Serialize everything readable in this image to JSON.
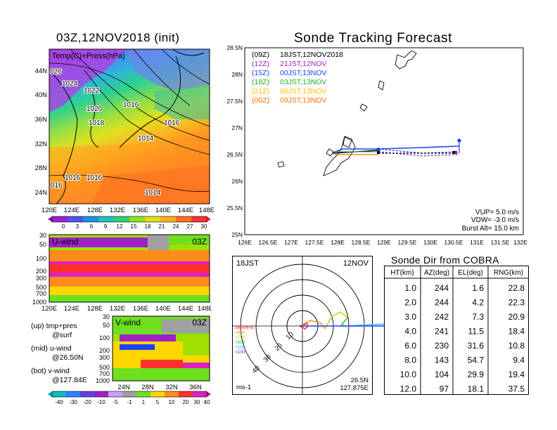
{
  "map_panel": {
    "title": "03Z,12NOV2018 (init)",
    "field_label": "Temp(C)+Press(hPa)",
    "lat_labels": [
      "44N",
      "40N",
      "36N",
      "32N",
      "28N",
      "24N"
    ],
    "lon_labels": [
      "120E",
      "124E",
      "128E",
      "132E",
      "136E",
      "140E",
      "144E",
      "148E"
    ],
    "isobar_labels": [
      "026",
      "1024",
      "1022",
      "1020",
      "1018",
      "1016",
      "1016",
      "1014",
      "016",
      "1016",
      "1016",
      "1014"
    ],
    "colorbar_labels": [
      "0",
      "3",
      "6",
      "9",
      "12",
      "15",
      "18",
      "21",
      "24",
      "27",
      "30"
    ]
  },
  "uwind_panel": {
    "title": "U-wind",
    "time": "03Z",
    "pressure_labels": [
      "30",
      "50",
      "100",
      "200",
      "300",
      "500",
      "700",
      "1000"
    ],
    "lon_labels": [
      "120E",
      "124E",
      "128E",
      "132E",
      "136E",
      "140E",
      "144E",
      "148E"
    ]
  },
  "vwind_panel": {
    "title": "V-wind",
    "time": "03Z",
    "pressure_labels": [
      "30",
      "50",
      "100",
      "200",
      "300",
      "500",
      "700",
      "1000"
    ],
    "lat_labels": [
      "24N",
      "28N",
      "32N",
      "36N"
    ]
  },
  "legend_notes": {
    "up_line1": "(up) tmp+pres",
    "up_line2": "@surf",
    "mid_line1": "(mid) u-wind",
    "mid_line2": "@26.50N",
    "bot_line1": "(bot) v-wind",
    "bot_line2": "@127.84E"
  },
  "wind_colorbar_labels": [
    "-40",
    "-30",
    "-20",
    "-10",
    "-5",
    "-1",
    "1",
    "5",
    "10",
    "20",
    "30",
    "40"
  ],
  "colors": {
    "purple": "#a020c8",
    "green_bright": "#6ee020",
    "orange": "#ff8c1a",
    "red": "#ff3030",
    "magenta": "#e020c0",
    "gray": "#a0a0a0",
    "yellow": "#ffd700",
    "lime": "#a0e000"
  },
  "tracking_panel": {
    "title": "Sonde Tracking Forecast",
    "lat_labels": [
      "28.5N",
      "28N",
      "27.5N",
      "27N",
      "26.5N",
      "26N",
      "25.5N",
      "25N"
    ],
    "lon_labels": [
      "126E",
      "126.5E",
      "127E",
      "127.5E",
      "128E",
      "128.5E",
      "129E",
      "129.5E",
      "130E",
      "130.5E",
      "131E",
      "131.5E",
      "132E"
    ],
    "runs": [
      {
        "code": "(09Z)",
        "label": "18JST,12NOV2018",
        "color": "#000000"
      },
      {
        "code": "(12Z)",
        "label": "21JST,12NOV",
        "color": "#a020c8"
      },
      {
        "code": "(15Z)",
        "label": "00JST,13NOV",
        "color": "#2040ff"
      },
      {
        "code": "(18Z)",
        "label": "03JST,13NOV",
        "color": "#20b020"
      },
      {
        "code": "(21Z)",
        "label": "06JST,13NOV",
        "color": "#ffc000"
      },
      {
        "code": "(00Z)",
        "label": "09JST,13NOV",
        "color": "#ff7000"
      }
    ],
    "vup": "VUP= 5.0 m/s",
    "vdw": "VDW= -3.0 m/s",
    "burst": "Burst Alt= 15.0 km"
  },
  "polar_panel": {
    "time_label": "18JST",
    "date_label": "12NOV",
    "ring_labels": [
      "10",
      "20",
      "30",
      "40"
    ],
    "level_legend": [
      "≥850hPa",
      "<850",
      "<700",
      "<500",
      "<250",
      "<100"
    ],
    "level_colors": [
      "#ff2020",
      "#ff8c00",
      "#c8c800",
      "#20c020",
      "#20c0ff",
      "#2040ff"
    ],
    "unit": "ms-1",
    "pos_lat": "26.5N",
    "pos_lon": "127.875E"
  },
  "chart_data": {
    "type": "table",
    "title": "Sonde Dir from COBRA",
    "columns": [
      "HT(km)",
      "AZ(deg)",
      "EL(deg)",
      "RNG(km)"
    ],
    "rows": [
      [
        "1.0",
        "244",
        "1.6",
        "22.8"
      ],
      [
        "2.0",
        "244",
        "4.2",
        "22.3"
      ],
      [
        "3.0",
        "242",
        "7.3",
        "20.9"
      ],
      [
        "4.0",
        "241",
        "11.5",
        "18.4"
      ],
      [
        "6.0",
        "230",
        "31.6",
        "10.8"
      ],
      [
        "8.0",
        "143",
        "54.7",
        "9.4"
      ],
      [
        "10.0",
        "104",
        "29.9",
        "19.4"
      ],
      [
        "12.0",
        "97",
        "18.1",
        "37.5"
      ]
    ]
  }
}
